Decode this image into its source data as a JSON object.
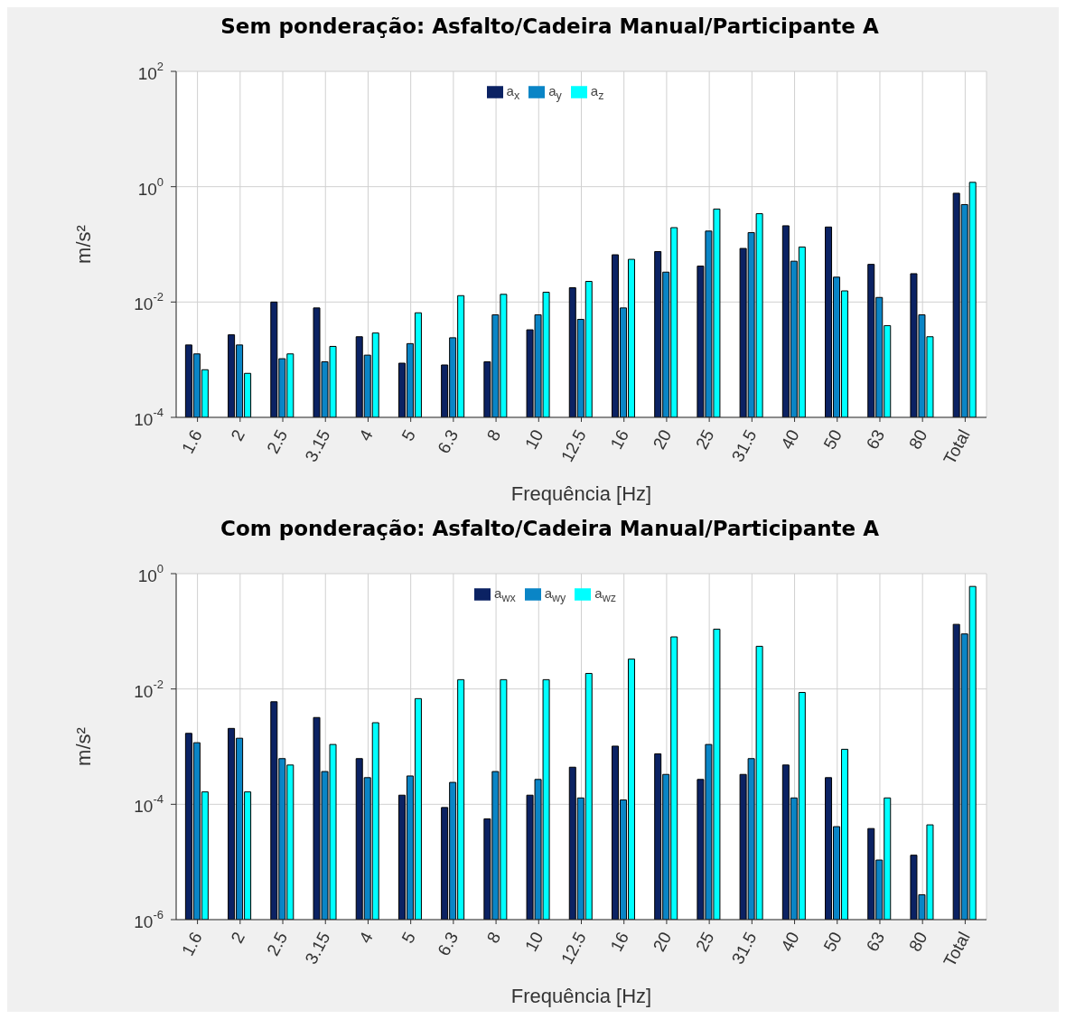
{
  "chart_data": [
    {
      "type": "bar",
      "title": "Sem ponderação: Asfalto/Cadeira Manual/Participante A",
      "xlabel": "Frequência [Hz]",
      "ylabel": "m/s²",
      "categories": [
        "1.6",
        "2",
        "2.5",
        "3.15",
        "4",
        "5",
        "6.3",
        "8",
        "10",
        "12.5",
        "16",
        "20",
        "25",
        "31.5",
        "40",
        "50",
        "63",
        "80",
        "Total"
      ],
      "series": [
        {
          "name": "a$_{x}$",
          "color": "#0b2263",
          "values": [
            0.0018,
            0.0027,
            0.01,
            0.0079,
            0.0025,
            0.00087,
            0.00081,
            0.00092,
            0.0033,
            0.0177,
            0.066,
            0.075,
            0.042,
            0.085,
            0.21,
            0.2,
            0.045,
            0.031,
            0.77
          ]
        },
        {
          "name": "a$_{y}$",
          "color": "#0a85c6",
          "values": [
            0.00126,
            0.0018,
            0.00104,
            0.00092,
            0.0012,
            0.0019,
            0.0024,
            0.006,
            0.006,
            0.005,
            0.0079,
            0.033,
            0.17,
            0.16,
            0.051,
            0.027,
            0.012,
            0.006,
            0.49
          ]
        },
        {
          "name": "a$_{z}$",
          "color": "#00ffff",
          "values": [
            0.00067,
            0.00058,
            0.00126,
            0.0017,
            0.0029,
            0.0065,
            0.0129,
            0.0136,
            0.0148,
            0.0228,
            0.055,
            0.195,
            0.41,
            0.34,
            0.09,
            0.0156,
            0.0039,
            0.0025,
            1.19
          ]
        }
      ],
      "log": "y",
      "ylim": [
        0.0001,
        100
      ],
      "yticks": [
        {
          "value": 0.0001,
          "label": "10$^{-4}$"
        },
        {
          "value": 0.01,
          "label": "10$^{-2}$"
        },
        {
          "value": 1,
          "label": "10$^{0}$"
        },
        {
          "value": 100,
          "label": "10$^{2}$"
        }
      ],
      "grid": true,
      "legend": "top"
    },
    {
      "type": "bar",
      "title": "Com ponderação: Asfalto/Cadeira Manual/Participante A",
      "xlabel": "Frequência [Hz]",
      "ylabel": "m/s²",
      "categories": [
        "1.6",
        "2",
        "2.5",
        "3.15",
        "4",
        "5",
        "6.3",
        "8",
        "10",
        "12.5",
        "16",
        "20",
        "25",
        "31.5",
        "40",
        "50",
        "63",
        "80",
        "Total"
      ],
      "series": [
        {
          "name": "a$_{wx}$",
          "color": "#0b2263",
          "values": [
            0.0017,
            0.00207,
            0.006,
            0.0032,
            0.00062,
            0.000144,
            8.8e-05,
            5.6e-05,
            0.000144,
            0.00044,
            0.00102,
            0.00075,
            0.00027,
            0.00033,
            0.00048,
            0.00029,
            3.8e-05,
            1.31e-05,
            0.132
          ]
        },
        {
          "name": "a$_{wy}$",
          "color": "#0a85c6",
          "values": [
            0.00117,
            0.0014,
            0.00062,
            0.00037,
            0.00029,
            0.00031,
            0.00024,
            0.00037,
            0.00027,
            0.000129,
            0.000119,
            0.00033,
            0.00109,
            0.00062,
            0.000129,
            4.1e-05,
            1.08e-05,
            2.7e-06,
            0.09
          ]
        },
        {
          "name": "a$_{wz}$",
          "color": "#00ffff",
          "values": [
            0.000164,
            0.000164,
            0.00048,
            0.00109,
            0.0026,
            0.0068,
            0.0145,
            0.0145,
            0.0145,
            0.0186,
            0.033,
            0.08,
            0.109,
            0.055,
            0.0087,
            0.0009,
            0.000129,
            4.4e-05,
            0.6
          ]
        }
      ],
      "log": "y",
      "ylim": [
        1e-06,
        1
      ],
      "yticks": [
        {
          "value": 1e-06,
          "label": "10$^{-6}$"
        },
        {
          "value": 0.0001,
          "label": "10$^{-4}$"
        },
        {
          "value": 0.01,
          "label": "10$^{-2}$"
        },
        {
          "value": 1,
          "label": "10$^{0}$"
        }
      ],
      "grid": true,
      "legend": "top"
    }
  ]
}
